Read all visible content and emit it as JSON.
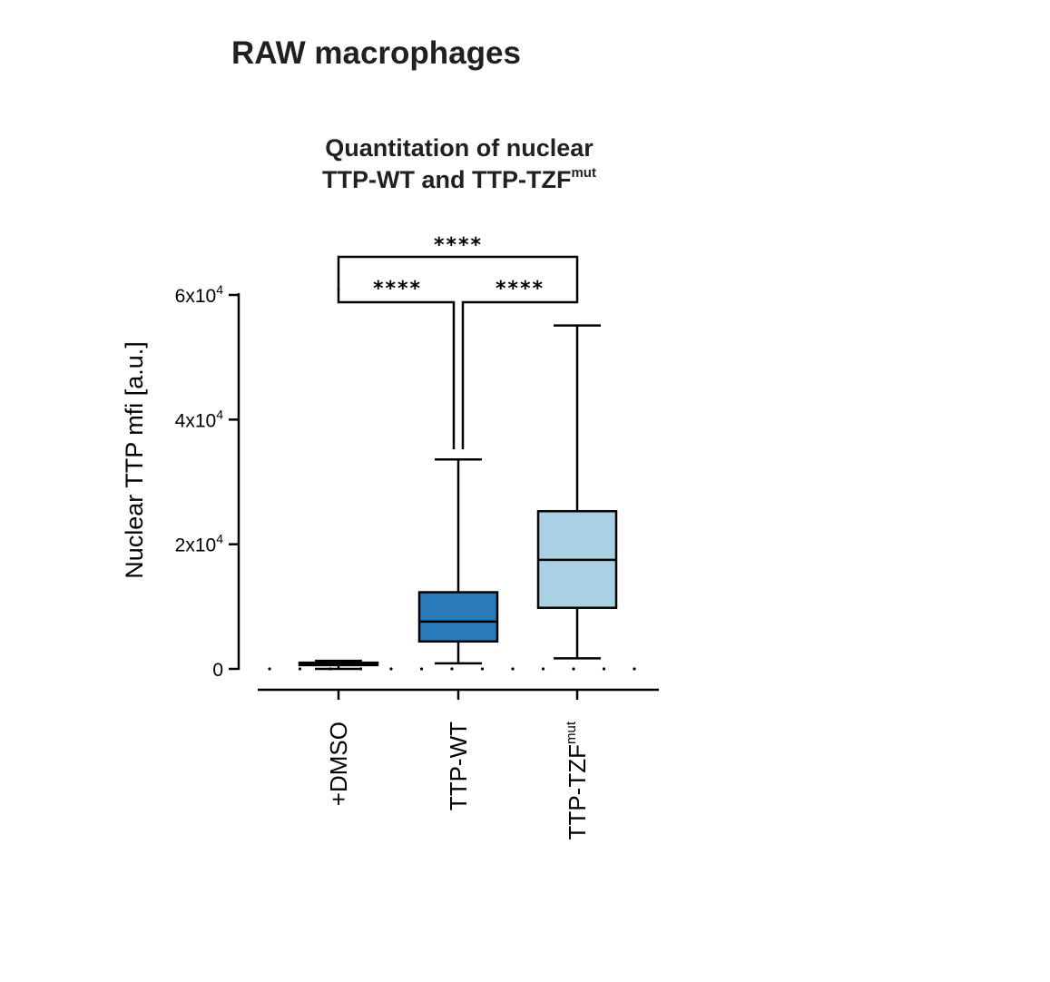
{
  "panel_title": "RAW macrophages",
  "chart_data": {
    "type": "box",
    "title": {
      "line1": "Quantitation of nuclear",
      "line2_main": "TTP-WT and TTP-TZF",
      "line2_sup": "mut"
    },
    "ylabel": "Nuclear TTP mfi [a.u.]",
    "xlabel": "",
    "ylim": [
      0,
      60000
    ],
    "y_ticks": [
      {
        "value": 0,
        "label": "0",
        "sup": ""
      },
      {
        "value": 20000,
        "label": "2x10",
        "sup": "4"
      },
      {
        "value": 40000,
        "label": "4x10",
        "sup": "4"
      },
      {
        "value": 60000,
        "label": "6x10",
        "sup": "4"
      }
    ],
    "grid": false,
    "legend": "none",
    "categories": [
      {
        "label": "+DMSO",
        "sup": ""
      },
      {
        "label": "TTP-WT",
        "sup": ""
      },
      {
        "label": "TTP-TZF",
        "sup": "mut"
      }
    ],
    "boxes": [
      {
        "category": "+DMSO",
        "min": 0,
        "q1": 600,
        "median": 800,
        "q3": 1000,
        "max": 1300,
        "color": "#1a1a1a"
      },
      {
        "category": "TTP-WT",
        "min": 900,
        "q1": 4400,
        "median": 7600,
        "q3": 12300,
        "max": 33600,
        "color": "#2a7ab9"
      },
      {
        "category": "TTP-TZF",
        "min": 1700,
        "q1": 9800,
        "median": 17500,
        "q3": 25300,
        "max": 55100,
        "color": "#aad0e3"
      }
    ],
    "significance": [
      {
        "from": 0,
        "to": 1,
        "label": "****"
      },
      {
        "from": 1,
        "to": 2,
        "label": "****"
      },
      {
        "from": 0,
        "to": 2,
        "label": "****"
      }
    ]
  }
}
